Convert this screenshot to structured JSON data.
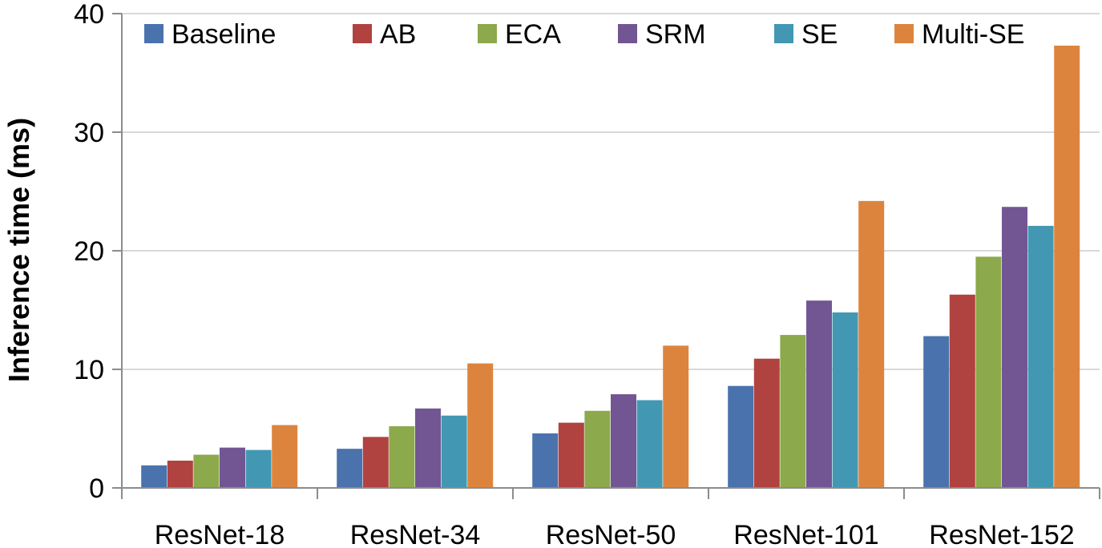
{
  "chart_data": {
    "type": "bar",
    "title": "",
    "xlabel": "",
    "ylabel": "Inference time (ms)",
    "ylim": [
      0,
      40
    ],
    "yticks": [
      "0",
      "10",
      "20",
      "30",
      "40"
    ],
    "grid": "horizontal",
    "legend_position": "top",
    "categories": [
      "ResNet-18",
      "ResNet-34",
      "ResNet-50",
      "ResNet-101",
      "ResNet-152"
    ],
    "series": [
      {
        "name": "Baseline",
        "color": "#4a72ad",
        "values": [
          1.9,
          3.3,
          4.6,
          8.6,
          12.8
        ]
      },
      {
        "name": "AB",
        "color": "#b0423f",
        "values": [
          2.3,
          4.3,
          5.5,
          10.9,
          16.3
        ]
      },
      {
        "name": "ECA",
        "color": "#8ca94b",
        "values": [
          2.8,
          5.2,
          6.5,
          12.9,
          19.5
        ]
      },
      {
        "name": "SRM",
        "color": "#725694",
        "values": [
          3.4,
          6.7,
          7.9,
          15.8,
          23.7
        ]
      },
      {
        "name": "SE",
        "color": "#4298b3",
        "values": [
          3.2,
          6.1,
          7.4,
          14.8,
          22.1
        ]
      },
      {
        "name": "Multi-SE",
        "color": "#dc843e",
        "values": [
          5.3,
          10.5,
          12.0,
          24.2,
          37.3
        ]
      }
    ]
  }
}
